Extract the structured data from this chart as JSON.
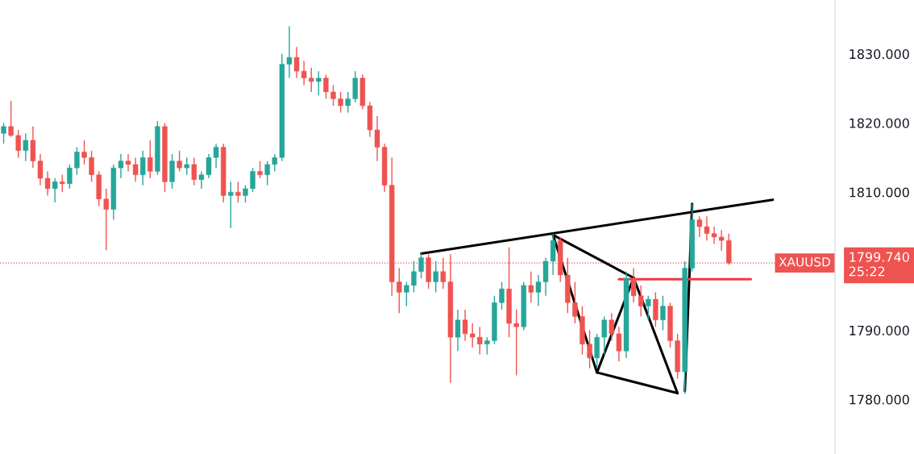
{
  "chart_data": {
    "type": "candlestick",
    "categories": [
      null,
      null,
      null,
      null,
      null,
      null,
      null,
      null,
      null,
      null,
      null,
      null,
      null,
      null,
      null,
      null,
      null,
      null,
      null,
      null,
      null,
      null,
      null,
      null,
      null,
      null,
      null,
      null,
      null,
      null,
      null,
      null,
      null,
      null,
      null,
      null,
      null,
      null,
      null,
      null,
      null,
      null,
      null,
      null,
      null,
      null,
      null,
      null,
      null,
      null,
      null,
      null,
      null,
      null,
      null,
      null,
      null,
      null,
      null,
      null,
      null,
      null,
      null,
      null,
      null,
      null,
      null,
      null,
      null,
      null,
      null,
      null,
      null,
      null,
      null,
      null,
      null,
      null,
      null,
      null,
      null,
      null,
      null,
      null,
      null,
      null,
      null,
      null,
      null,
      null,
      null,
      null,
      null,
      null,
      null,
      null,
      null,
      null,
      null,
      null,
      null,
      null,
      null,
      null,
      null,
      null,
      null,
      null,
      null,
      null,
      null,
      null,
      null,
      null
    ],
    "ohlc": [
      [
        1818.5,
        1820,
        1817,
        1819.5
      ],
      [
        1819.5,
        1823.2,
        1818,
        1818.2
      ],
      [
        1818.2,
        1819,
        1815,
        1816
      ],
      [
        1816,
        1818.5,
        1814.5,
        1817.5
      ],
      [
        1817.5,
        1819.5,
        1813.5,
        1814.5
      ],
      [
        1814.5,
        1815.5,
        1811,
        1812
      ],
      [
        1812,
        1813,
        1809.5,
        1810.5
      ],
      [
        1810.5,
        1812,
        1808.5,
        1811.5
      ],
      [
        1811.5,
        1812.5,
        1810,
        1811.2
      ],
      [
        1811.2,
        1814,
        1810.5,
        1813.5
      ],
      [
        1813.5,
        1816.5,
        1812.5,
        1815.8
      ],
      [
        1815.8,
        1817.5,
        1814,
        1815
      ],
      [
        1815,
        1816,
        1811.5,
        1812.5
      ],
      [
        1812.5,
        1813,
        1808,
        1809
      ],
      [
        1809,
        1810.5,
        1801.6,
        1807.5
      ],
      [
        1807.5,
        1814,
        1806,
        1813.5
      ],
      [
        1813.5,
        1815.5,
        1812,
        1814.5
      ],
      [
        1814.5,
        1815.5,
        1813,
        1814
      ],
      [
        1814,
        1815,
        1811.5,
        1812.5
      ],
      [
        1812.5,
        1816,
        1811,
        1815
      ],
      [
        1815,
        1817.5,
        1812,
        1813
      ],
      [
        1813,
        1820.3,
        1812.5,
        1819.5
      ],
      [
        1819.5,
        1820,
        1810,
        1811.5
      ],
      [
        1811.5,
        1815.5,
        1810.5,
        1814.5
      ],
      [
        1814.5,
        1816,
        1813,
        1813.5
      ],
      [
        1813.5,
        1815,
        1812.5,
        1814
      ],
      [
        1814,
        1815,
        1811,
        1811.8
      ],
      [
        1811.8,
        1813,
        1810.5,
        1812.5
      ],
      [
        1812.5,
        1815.5,
        1812,
        1815
      ],
      [
        1815,
        1817,
        1813.5,
        1816.5
      ],
      [
        1816.5,
        1817,
        1808.5,
        1809.5
      ],
      [
        1809.5,
        1811.5,
        1804.8,
        1810
      ],
      [
        1810,
        1811.5,
        1808.5,
        1809.5
      ],
      [
        1809.5,
        1811,
        1808.5,
        1810.5
      ],
      [
        1810.5,
        1813.5,
        1810,
        1813
      ],
      [
        1813,
        1814.5,
        1812,
        1812.5
      ],
      [
        1812.5,
        1814.5,
        1811,
        1814
      ],
      [
        1814,
        1815.5,
        1813,
        1815
      ],
      [
        1815,
        1830,
        1814.5,
        1828.5
      ],
      [
        1828.5,
        1834,
        1826.5,
        1829.5
      ],
      [
        1829.5,
        1831,
        1826.5,
        1827.5
      ],
      [
        1827.5,
        1829,
        1825.5,
        1826.5
      ],
      [
        1826.5,
        1828,
        1824.5,
        1826
      ],
      [
        1826,
        1827.5,
        1824,
        1826.5
      ],
      [
        1826.5,
        1827,
        1823.5,
        1824.5
      ],
      [
        1824.5,
        1825.5,
        1822.5,
        1823.5
      ],
      [
        1823.5,
        1824.5,
        1821.5,
        1822.5
      ],
      [
        1822.5,
        1824.5,
        1821.5,
        1823.5
      ],
      [
        1823.5,
        1827.5,
        1823,
        1826.5
      ],
      [
        1826.5,
        1827,
        1822,
        1822.5
      ],
      [
        1822.5,
        1823,
        1818,
        1819
      ],
      [
        1819,
        1821,
        1814.5,
        1816.5
      ],
      [
        1816.5,
        1817,
        1810,
        1811
      ],
      [
        1811,
        1815,
        1795,
        1797
      ],
      [
        1797,
        1799,
        1792.5,
        1795.5
      ],
      [
        1795.5,
        1797,
        1793.5,
        1796.5
      ],
      [
        1796.5,
        1800,
        1795.5,
        1798.5
      ],
      [
        1798.5,
        1801.2,
        1797.5,
        1800.5
      ],
      [
        1800.5,
        1801,
        1796,
        1797
      ],
      [
        1797,
        1800,
        1795.5,
        1798.5
      ],
      [
        1798.5,
        1800.5,
        1796,
        1797
      ],
      [
        1797,
        1801,
        1782.4,
        1789
      ],
      [
        1789,
        1793,
        1787,
        1791.5
      ],
      [
        1791.5,
        1793,
        1788.5,
        1789.5
      ],
      [
        1789.5,
        1791,
        1787.5,
        1789
      ],
      [
        1789,
        1790.5,
        1786.5,
        1788
      ],
      [
        1788,
        1789,
        1786.5,
        1788.5
      ],
      [
        1788.5,
        1795,
        1788,
        1794
      ],
      [
        1794,
        1797,
        1793,
        1796
      ],
      [
        1796,
        1802,
        1789,
        1791
      ],
      [
        1791,
        1793,
        1783.5,
        1790.5
      ],
      [
        1790.5,
        1797,
        1790,
        1796.5
      ],
      [
        1796.5,
        1798.5,
        1794,
        1795.5
      ],
      [
        1795.5,
        1798,
        1793.5,
        1797
      ],
      [
        1797,
        1800.5,
        1795,
        1800
      ],
      [
        1800,
        1804,
        1798,
        1803
      ],
      [
        1803,
        1803.5,
        1797,
        1798
      ],
      [
        1798,
        1800.5,
        1792.5,
        1794
      ],
      [
        1794,
        1797,
        1791,
        1792
      ],
      [
        1792,
        1793.5,
        1786.5,
        1788
      ],
      [
        1788,
        1790,
        1784.5,
        1786
      ],
      [
        1786,
        1789.5,
        1784.5,
        1789
      ],
      [
        1789,
        1792,
        1786.5,
        1791.5
      ],
      [
        1791.5,
        1792.5,
        1788.5,
        1789.5
      ],
      [
        1789.5,
        1790.5,
        1785.5,
        1787
      ],
      [
        1787,
        1798.5,
        1786,
        1797.5
      ],
      [
        1797.5,
        1799,
        1794,
        1795
      ],
      [
        1795,
        1796.5,
        1792,
        1793.5
      ],
      [
        1793.5,
        1795,
        1791.5,
        1794.5
      ],
      [
        1794.5,
        1795.5,
        1790.5,
        1791.5
      ],
      [
        1791.5,
        1795,
        1790,
        1793.5
      ],
      [
        1793.5,
        1794,
        1787.5,
        1788.5
      ],
      [
        1788.5,
        1789.5,
        1783,
        1784
      ],
      [
        1784,
        1800,
        1780.8,
        1799
      ],
      [
        1799,
        1808.3,
        1798.5,
        1806
      ],
      [
        1806,
        1806.5,
        1803.5,
        1805
      ],
      [
        1805,
        1806.5,
        1803,
        1804
      ],
      [
        1804,
        1805,
        1802.5,
        1803.5
      ],
      [
        1803.5,
        1804.5,
        1801.5,
        1803
      ],
      [
        1803,
        1804,
        1799.5,
        1799.74
      ],
      null,
      null,
      null,
      null,
      null,
      null,
      null,
      null,
      null,
      null,
      null,
      null,
      null,
      null
    ],
    "series": [
      {
        "type": "line",
        "color": "#000000",
        "values": [
          null,
          null,
          null,
          null,
          null,
          null,
          null,
          null,
          null,
          null,
          null,
          null,
          null,
          null,
          null,
          null,
          null,
          null,
          null,
          null,
          null,
          null,
          null,
          null,
          null,
          null,
          null,
          null,
          null,
          null,
          null,
          null,
          null,
          null,
          null,
          null,
          null,
          null,
          null,
          null,
          null,
          null,
          null,
          null,
          null,
          null,
          null,
          null,
          null,
          null,
          null,
          null,
          null,
          null,
          null,
          null,
          null,
          1801.1,
          null,
          null,
          null,
          null,
          null,
          null,
          null,
          null,
          null,
          null,
          null,
          null,
          null,
          null,
          null,
          null,
          null,
          null,
          null,
          null,
          null,
          null,
          null,
          null,
          null,
          null,
          null,
          null,
          null,
          null,
          null,
          null,
          null,
          null,
          null,
          null,
          null,
          null,
          null,
          null,
          null,
          null,
          null,
          null,
          null,
          null,
          null,
          1808.9,
          null,
          null,
          null,
          null,
          null,
          null,
          null,
          null
        ]
      },
      {
        "type": "line",
        "color": "#000000",
        "values": [
          null,
          null,
          null,
          null,
          null,
          null,
          null,
          null,
          null,
          null,
          null,
          null,
          null,
          null,
          null,
          null,
          null,
          null,
          null,
          null,
          null,
          null,
          null,
          null,
          null,
          null,
          null,
          null,
          null,
          null,
          null,
          null,
          null,
          null,
          null,
          null,
          null,
          null,
          null,
          null,
          null,
          null,
          null,
          null,
          null,
          null,
          null,
          null,
          null,
          null,
          null,
          null,
          null,
          null,
          null,
          null,
          null,
          null,
          null,
          null,
          null,
          null,
          null,
          null,
          null,
          null,
          null,
          null,
          null,
          null,
          null,
          null,
          null,
          null,
          null,
          1803.8,
          null,
          null,
          null,
          null,
          null,
          null,
          null,
          null,
          null,
          null,
          1797.6,
          null,
          null,
          null,
          null,
          null,
          null,
          null,
          null,
          null,
          null,
          null,
          null,
          null,
          null,
          null,
          null,
          null,
          null,
          null,
          null,
          null,
          null,
          null,
          null,
          null,
          null,
          null
        ]
      },
      {
        "type": "line",
        "color": "#000000",
        "values": [
          null,
          null,
          null,
          null,
          null,
          null,
          null,
          null,
          null,
          null,
          null,
          null,
          null,
          null,
          null,
          null,
          null,
          null,
          null,
          null,
          null,
          null,
          null,
          null,
          null,
          null,
          null,
          null,
          null,
          null,
          null,
          null,
          null,
          null,
          null,
          null,
          null,
          null,
          null,
          null,
          null,
          null,
          null,
          null,
          null,
          null,
          null,
          null,
          null,
          null,
          null,
          null,
          null,
          null,
          null,
          null,
          null,
          null,
          null,
          null,
          null,
          null,
          null,
          null,
          null,
          null,
          null,
          null,
          null,
          null,
          null,
          null,
          null,
          null,
          null,
          1803.8,
          null,
          null,
          null,
          null,
          null,
          1783.9,
          null,
          null,
          null,
          null,
          null,
          null,
          null,
          null,
          null,
          null,
          null,
          null,
          null,
          null,
          null,
          null,
          null,
          null,
          null,
          null,
          null,
          null,
          null,
          null,
          null,
          null,
          null,
          null,
          null,
          null,
          null,
          null
        ]
      },
      {
        "type": "line",
        "color": "#000000",
        "values": [
          null,
          null,
          null,
          null,
          null,
          null,
          null,
          null,
          null,
          null,
          null,
          null,
          null,
          null,
          null,
          null,
          null,
          null,
          null,
          null,
          null,
          null,
          null,
          null,
          null,
          null,
          null,
          null,
          null,
          null,
          null,
          null,
          null,
          null,
          null,
          null,
          null,
          null,
          null,
          null,
          null,
          null,
          null,
          null,
          null,
          null,
          null,
          null,
          null,
          null,
          null,
          null,
          null,
          null,
          null,
          null,
          null,
          null,
          null,
          null,
          null,
          null,
          null,
          null,
          null,
          null,
          null,
          null,
          null,
          null,
          null,
          null,
          null,
          null,
          null,
          null,
          null,
          null,
          null,
          null,
          null,
          1783.9,
          null,
          null,
          null,
          null,
          1797.6,
          null,
          null,
          null,
          null,
          null,
          null,
          null,
          null,
          null,
          null,
          null,
          null,
          null,
          null,
          null,
          null,
          null,
          null,
          null,
          null,
          null,
          null,
          null,
          null,
          null,
          null,
          null
        ]
      },
      {
        "type": "line",
        "color": "#000000",
        "values": [
          null,
          null,
          null,
          null,
          null,
          null,
          null,
          null,
          null,
          null,
          null,
          null,
          null,
          null,
          null,
          null,
          null,
          null,
          null,
          null,
          null,
          null,
          null,
          null,
          null,
          null,
          null,
          null,
          null,
          null,
          null,
          null,
          null,
          null,
          null,
          null,
          null,
          null,
          null,
          null,
          null,
          null,
          null,
          null,
          null,
          null,
          null,
          null,
          null,
          null,
          null,
          null,
          null,
          null,
          null,
          null,
          null,
          null,
          null,
          null,
          null,
          null,
          null,
          null,
          null,
          null,
          null,
          null,
          null,
          null,
          null,
          null,
          null,
          null,
          null,
          null,
          null,
          null,
          null,
          null,
          null,
          null,
          null,
          null,
          null,
          null,
          1797.6,
          null,
          null,
          null,
          null,
          null,
          1780.9,
          null,
          null,
          null,
          null,
          null,
          null,
          null,
          null,
          null,
          null,
          null,
          null,
          null,
          null,
          null,
          null,
          null,
          null,
          null,
          null,
          null
        ]
      },
      {
        "type": "line",
        "color": "#000000",
        "values": [
          null,
          null,
          null,
          null,
          null,
          null,
          null,
          null,
          null,
          null,
          null,
          null,
          null,
          null,
          null,
          null,
          null,
          null,
          null,
          null,
          null,
          null,
          null,
          null,
          null,
          null,
          null,
          null,
          null,
          null,
          null,
          null,
          null,
          null,
          null,
          null,
          null,
          null,
          null,
          null,
          null,
          null,
          null,
          null,
          null,
          null,
          null,
          null,
          null,
          null,
          null,
          null,
          null,
          null,
          null,
          null,
          null,
          null,
          null,
          null,
          null,
          null,
          null,
          null,
          null,
          null,
          null,
          null,
          null,
          null,
          null,
          null,
          null,
          null,
          null,
          null,
          null,
          null,
          null,
          null,
          null,
          1783.9,
          null,
          null,
          null,
          null,
          null,
          null,
          null,
          null,
          null,
          null,
          1780.9,
          null,
          null,
          null,
          null,
          null,
          null,
          null,
          null,
          null,
          null,
          null,
          null,
          null,
          null,
          null,
          null,
          null,
          null,
          null,
          null,
          null
        ]
      },
      {
        "type": "line",
        "color": "#000000",
        "values": [
          null,
          null,
          null,
          null,
          null,
          null,
          null,
          null,
          null,
          null,
          null,
          null,
          null,
          null,
          null,
          null,
          null,
          null,
          null,
          null,
          null,
          null,
          null,
          null,
          null,
          null,
          null,
          null,
          null,
          null,
          null,
          null,
          null,
          null,
          null,
          null,
          null,
          null,
          null,
          null,
          null,
          null,
          null,
          null,
          null,
          null,
          null,
          null,
          null,
          null,
          null,
          null,
          null,
          null,
          null,
          null,
          null,
          null,
          null,
          null,
          null,
          null,
          null,
          null,
          null,
          null,
          null,
          null,
          null,
          null,
          null,
          null,
          null,
          null,
          null,
          null,
          null,
          null,
          null,
          null,
          null,
          null,
          null,
          null,
          null,
          null,
          null,
          null,
          null,
          null,
          null,
          null,
          null,
          1781.2,
          1808.3,
          null,
          null,
          null,
          null,
          null,
          null,
          null,
          null,
          null,
          null,
          null,
          null,
          null,
          null,
          null,
          null,
          null,
          null,
          null
        ]
      },
      {
        "type": "line",
        "color": "#f23645",
        "values": [
          null,
          null,
          null,
          null,
          null,
          null,
          null,
          null,
          null,
          null,
          null,
          null,
          null,
          null,
          null,
          null,
          null,
          null,
          null,
          null,
          null,
          null,
          null,
          null,
          null,
          null,
          null,
          null,
          null,
          null,
          null,
          null,
          null,
          null,
          null,
          null,
          null,
          null,
          null,
          null,
          null,
          null,
          null,
          null,
          null,
          null,
          null,
          null,
          null,
          null,
          null,
          null,
          null,
          null,
          null,
          null,
          null,
          null,
          null,
          null,
          null,
          null,
          null,
          null,
          null,
          null,
          null,
          null,
          null,
          null,
          null,
          null,
          null,
          null,
          null,
          null,
          null,
          null,
          null,
          null,
          null,
          null,
          null,
          null,
          1797.4,
          null,
          null,
          null,
          null,
          null,
          null,
          null,
          null,
          null,
          null,
          null,
          null,
          null,
          null,
          null,
          null,
          null,
          1797.4,
          null,
          null,
          null,
          null,
          null,
          null,
          null,
          null,
          null,
          null,
          null
        ]
      }
    ],
    "ref_lines": [
      {
        "axis": "y",
        "value": 1799.74,
        "label": "XAUUSD",
        "color": "#ef5350",
        "line_style": "dotted"
      }
    ],
    "ylim": [
      1772.1,
      1837.8
    ],
    "yticks": [
      {
        "value": 1780,
        "label": "1780.000"
      },
      {
        "value": 1790,
        "label": "1790.000"
      },
      {
        "value": 1799.74,
        "label": "1799.740\n25:22"
      },
      {
        "value": 1810,
        "label": "1810.000"
      },
      {
        "value": 1820,
        "label": "1820.000"
      },
      {
        "value": 1830,
        "label": "1830.000"
      }
    ],
    "tick_labels": "y",
    "grid": false
  }
}
